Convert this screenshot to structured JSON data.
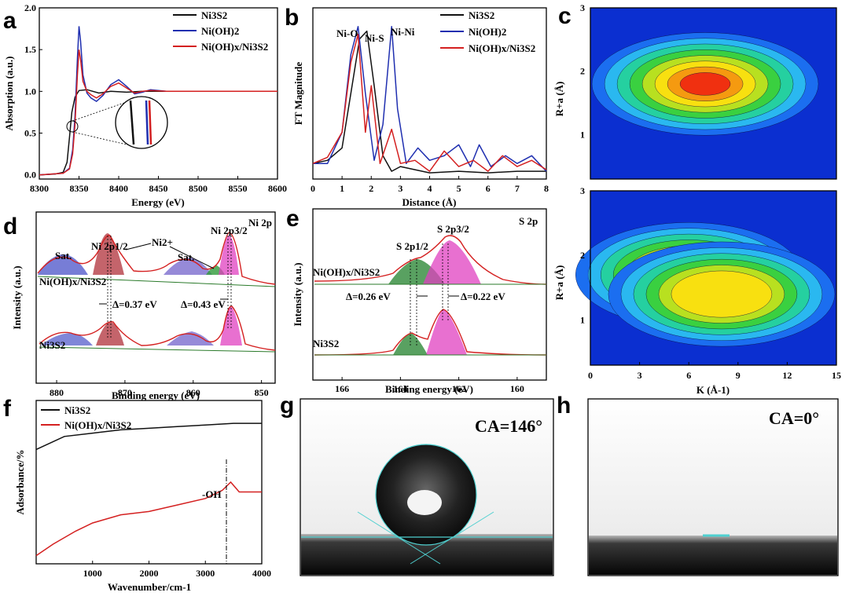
{
  "panels": {
    "a": {
      "letter": "a",
      "ylabel": "Absorption (a.u.)",
      "xlabel": "Energy (eV)",
      "xticks": [
        "8300",
        "8350",
        "8400",
        "8450",
        "8500",
        "8550",
        "8600"
      ],
      "yticks": [
        "0.0",
        "0.5",
        "1.0",
        "1.5",
        "2.0"
      ]
    },
    "b": {
      "letter": "b",
      "ylabel": "FT Magnitude",
      "xlabel": "Distance (Å)",
      "xticks": [
        "0",
        "1",
        "2",
        "3",
        "4",
        "5",
        "6",
        "7",
        "8"
      ],
      "annotations": [
        "Ni-O",
        "Ni-S",
        "Ni-Ni"
      ]
    },
    "c": {
      "letter": "c",
      "ylabel_top": "R+a (Å)",
      "ylabel_bottom": "R+a (Å)",
      "xlabel": "K (Å-1)",
      "xticks": [
        "0",
        "3",
        "6",
        "9",
        "12",
        "15"
      ],
      "yticks": [
        "1",
        "2",
        "3"
      ]
    },
    "d": {
      "letter": "d",
      "ylabel": "Intensity (a.u.)",
      "xlabel": "Binding energy (eV)",
      "xticks": [
        "880",
        "870",
        "860",
        "850"
      ],
      "corner": "Ni 2p",
      "labels": [
        "Sat.",
        "Ni 2p1/2",
        "Ni2+",
        "Sat.",
        "Ni 2p3/2",
        "Ni(OH)x/Ni3S2",
        "Δ=0.37 eV",
        "Δ=0.43 eV",
        "Ni3S2"
      ]
    },
    "e": {
      "letter": "e",
      "ylabel": "Intensity (a.u.)",
      "xlabel": "Binding energy (eV)",
      "xticks": [
        "166",
        "164",
        "162",
        "160"
      ],
      "corner": "S 2p",
      "labels": [
        "S 2p1/2",
        "S 2p3/2",
        "Ni(OH)x/Ni3S2",
        "Δ=0.26 eV",
        "Δ=0.22 eV",
        "Ni3S2"
      ]
    },
    "f": {
      "letter": "f",
      "ylabel": "Adsorbance/%",
      "xlabel": "Wavenumber/cm-1",
      "xticks": [
        "1000",
        "2000",
        "3000",
        "4000"
      ],
      "annotation": "-OH"
    },
    "g": {
      "letter": "g",
      "ca": "CA=146°"
    },
    "h": {
      "letter": "h",
      "ca": "CA=0°"
    }
  },
  "legends": {
    "a": [
      "Ni3S2",
      "Ni(OH)2",
      "Ni(OH)x/Ni3S2"
    ],
    "b": [
      "Ni3S2",
      "Ni(OH)2",
      "Ni(OH)x/Ni3S2"
    ],
    "f": [
      "Ni3S2",
      "Ni(OH)x/Ni3S2"
    ]
  },
  "colors": {
    "black": "#111111",
    "blue": "#1f2fb0",
    "red": "#d42020"
  },
  "chart_data": [
    {
      "panel": "a",
      "type": "line",
      "title": "",
      "xlabel": "Energy (eV)",
      "ylabel": "Absorption (a.u.)",
      "xlim": [
        8300,
        8600
      ],
      "ylim": [
        -0.05,
        2.0
      ],
      "series": [
        {
          "name": "Ni3S2",
          "x": [
            8300,
            8320,
            8330,
            8335,
            8338,
            8341,
            8345,
            8350,
            8360,
            8375,
            8390,
            8410,
            8430,
            8460,
            8500,
            8550,
            8600
          ],
          "y": [
            0.0,
            0.01,
            0.03,
            0.15,
            0.45,
            0.75,
            0.93,
            1.01,
            1.02,
            0.98,
            1.0,
            0.99,
            1.0,
            1.0,
            1.0,
            1.0,
            1.0
          ]
        },
        {
          "name": "Ni(OH)2",
          "x": [
            8300,
            8330,
            8338,
            8342,
            8345,
            8348,
            8350,
            8352,
            8355,
            8360,
            8365,
            8372,
            8380,
            8390,
            8400,
            8410,
            8420,
            8430,
            8440,
            8460,
            8500,
            8550,
            8600
          ],
          "y": [
            0.0,
            0.02,
            0.08,
            0.3,
            0.7,
            1.4,
            1.78,
            1.6,
            1.2,
            0.98,
            0.92,
            0.88,
            0.95,
            1.08,
            1.14,
            1.06,
            0.97,
            0.99,
            1.02,
            1.0,
            1.0,
            1.0,
            1.0
          ]
        },
        {
          "name": "Ni(OH)x/Ni3S2",
          "x": [
            8300,
            8330,
            8338,
            8342,
            8345,
            8348,
            8350,
            8352,
            8355,
            8360,
            8365,
            8372,
            8380,
            8390,
            8400,
            8410,
            8420,
            8430,
            8440,
            8460,
            8500,
            8550,
            8600
          ],
          "y": [
            0.0,
            0.02,
            0.07,
            0.25,
            0.6,
            1.2,
            1.5,
            1.38,
            1.12,
            1.0,
            0.96,
            0.92,
            0.97,
            1.06,
            1.1,
            1.04,
            0.98,
            1.0,
            1.01,
            1.0,
            1.0,
            1.0,
            1.0
          ]
        }
      ]
    },
    {
      "panel": "b",
      "type": "line",
      "title": "",
      "xlabel": "Distance (Å)",
      "ylabel": "FT Magnitude",
      "xlim": [
        0,
        8
      ],
      "ylim": [
        0,
        1.1
      ],
      "series": [
        {
          "name": "Ni3S2",
          "x": [
            0,
            0.5,
            1.0,
            1.3,
            1.6,
            1.85,
            2.1,
            2.4,
            2.7,
            3.0,
            3.5,
            4.0,
            5.0,
            6.0,
            7.0,
            8.0
          ],
          "y": [
            0.1,
            0.12,
            0.2,
            0.55,
            0.9,
            0.95,
            0.6,
            0.15,
            0.05,
            0.08,
            0.06,
            0.04,
            0.05,
            0.04,
            0.05,
            0.05
          ]
        },
        {
          "name": "Ni(OH)2",
          "x": [
            0,
            0.5,
            1.0,
            1.3,
            1.55,
            1.8,
            2.1,
            2.4,
            2.7,
            2.9,
            3.2,
            3.6,
            4.0,
            4.5,
            5.0,
            5.4,
            5.7,
            6.1,
            6.6,
            7.0,
            7.5,
            8.0
          ],
          "y": [
            0.1,
            0.1,
            0.3,
            0.8,
            0.98,
            0.55,
            0.12,
            0.35,
            0.98,
            0.45,
            0.1,
            0.2,
            0.12,
            0.15,
            0.22,
            0.08,
            0.22,
            0.08,
            0.15,
            0.1,
            0.15,
            0.05
          ]
        },
        {
          "name": "Ni(OH)x/Ni3S2",
          "x": [
            0,
            0.5,
            1.0,
            1.3,
            1.55,
            1.8,
            2.0,
            2.3,
            2.7,
            3.0,
            3.5,
            4.0,
            4.5,
            5.0,
            5.5,
            6.0,
            6.5,
            7.0,
            7.5,
            8.0
          ],
          "y": [
            0.1,
            0.14,
            0.3,
            0.75,
            0.93,
            0.3,
            0.6,
            0.1,
            0.32,
            0.1,
            0.12,
            0.05,
            0.18,
            0.08,
            0.12,
            0.05,
            0.15,
            0.08,
            0.12,
            0.06
          ]
        }
      ]
    },
    {
      "panel": "c",
      "type": "heatmap",
      "title": "",
      "xlabel": "K (Å-1)",
      "ylabel": "R+a (Å)",
      "xlim": [
        0,
        15
      ],
      "ylim": [
        0.3,
        3
      ],
      "maps": [
        {
          "name": "top",
          "peaks": [
            {
              "k": 7,
              "r": 1.8,
              "amp": 1.0
            }
          ]
        },
        {
          "name": "bottom",
          "peaks": [
            {
              "k": 6,
              "r": 1.7,
              "amp": 1.0
            },
            {
              "k": 8,
              "r": 1.4,
              "amp": 0.7
            }
          ]
        }
      ]
    },
    {
      "panel": "d",
      "type": "line",
      "title": "",
      "xlabel": "Binding energy (eV)",
      "ylabel": "Intensity (a.u.)",
      "xlim": [
        883,
        848
      ],
      "peaks_eV": [
        879,
        873.2,
        861,
        855.5,
        857.2
      ]
    },
    {
      "panel": "e",
      "type": "line",
      "title": "",
      "xlabel": "Binding energy (eV)",
      "ylabel": "Intensity (a.u.)",
      "xlim": [
        167,
        159
      ],
      "peaks_eV": [
        163.6,
        162.4
      ]
    },
    {
      "panel": "f",
      "type": "line",
      "title": "",
      "xlabel": "Wavenumber/cm-1",
      "ylabel": "Adsorbance/%",
      "xlim": [
        0,
        4000
      ],
      "ylim": [
        0,
        1
      ],
      "series": [
        {
          "name": "Ni3S2",
          "x": [
            0,
            500,
            1000,
            1500,
            2000,
            2500,
            3000,
            3500,
            4000
          ],
          "y": [
            0.7,
            0.78,
            0.8,
            0.82,
            0.83,
            0.84,
            0.85,
            0.86,
            0.86
          ]
        },
        {
          "name": "Ni(OH)x/Ni3S2",
          "x": [
            0,
            300,
            700,
            1000,
            1500,
            2000,
            2500,
            3000,
            3300,
            3450,
            3600,
            4000
          ],
          "y": [
            0.05,
            0.12,
            0.2,
            0.25,
            0.3,
            0.32,
            0.36,
            0.4,
            0.45,
            0.5,
            0.44,
            0.44
          ]
        }
      ]
    }
  ]
}
